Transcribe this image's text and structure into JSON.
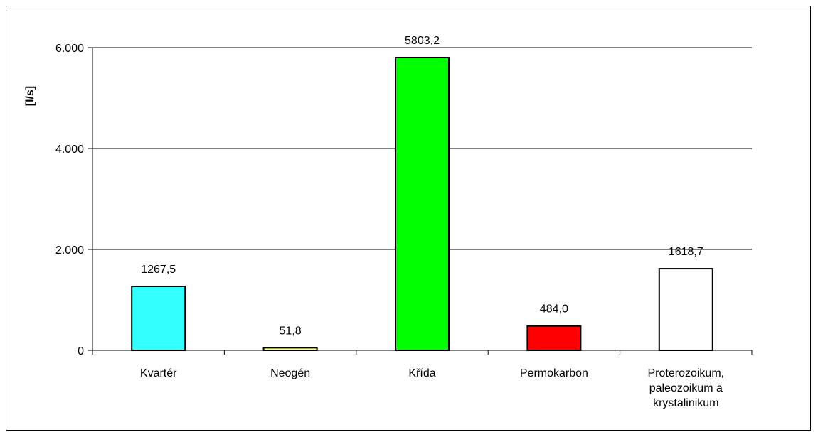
{
  "chart_data": {
    "type": "bar",
    "categories": [
      [
        "Kvartér"
      ],
      [
        "Neogén"
      ],
      [
        "Křída"
      ],
      [
        "Permokarbon"
      ],
      [
        "Proterozoikum,",
        "paleozoikum a",
        "krystalinikum"
      ]
    ],
    "values": [
      1267.5,
      51.8,
      5803.2,
      484.0,
      1618.7
    ],
    "value_labels": [
      "1267,5",
      "51,8",
      "5803,2",
      "484,0",
      "1618,7"
    ],
    "bar_colors": [
      "#33ffff",
      "#ffff66",
      "#00ff00",
      "#ff0000",
      "#ffffff"
    ],
    "ylabel": "[l/s]",
    "ylim": [
      0,
      6000
    ],
    "y_ticks": [
      0,
      2000,
      4000,
      6000
    ],
    "y_tick_labels": [
      "0",
      "2.000",
      "4.000",
      "6.000"
    ],
    "grid": true,
    "legend": "none"
  }
}
